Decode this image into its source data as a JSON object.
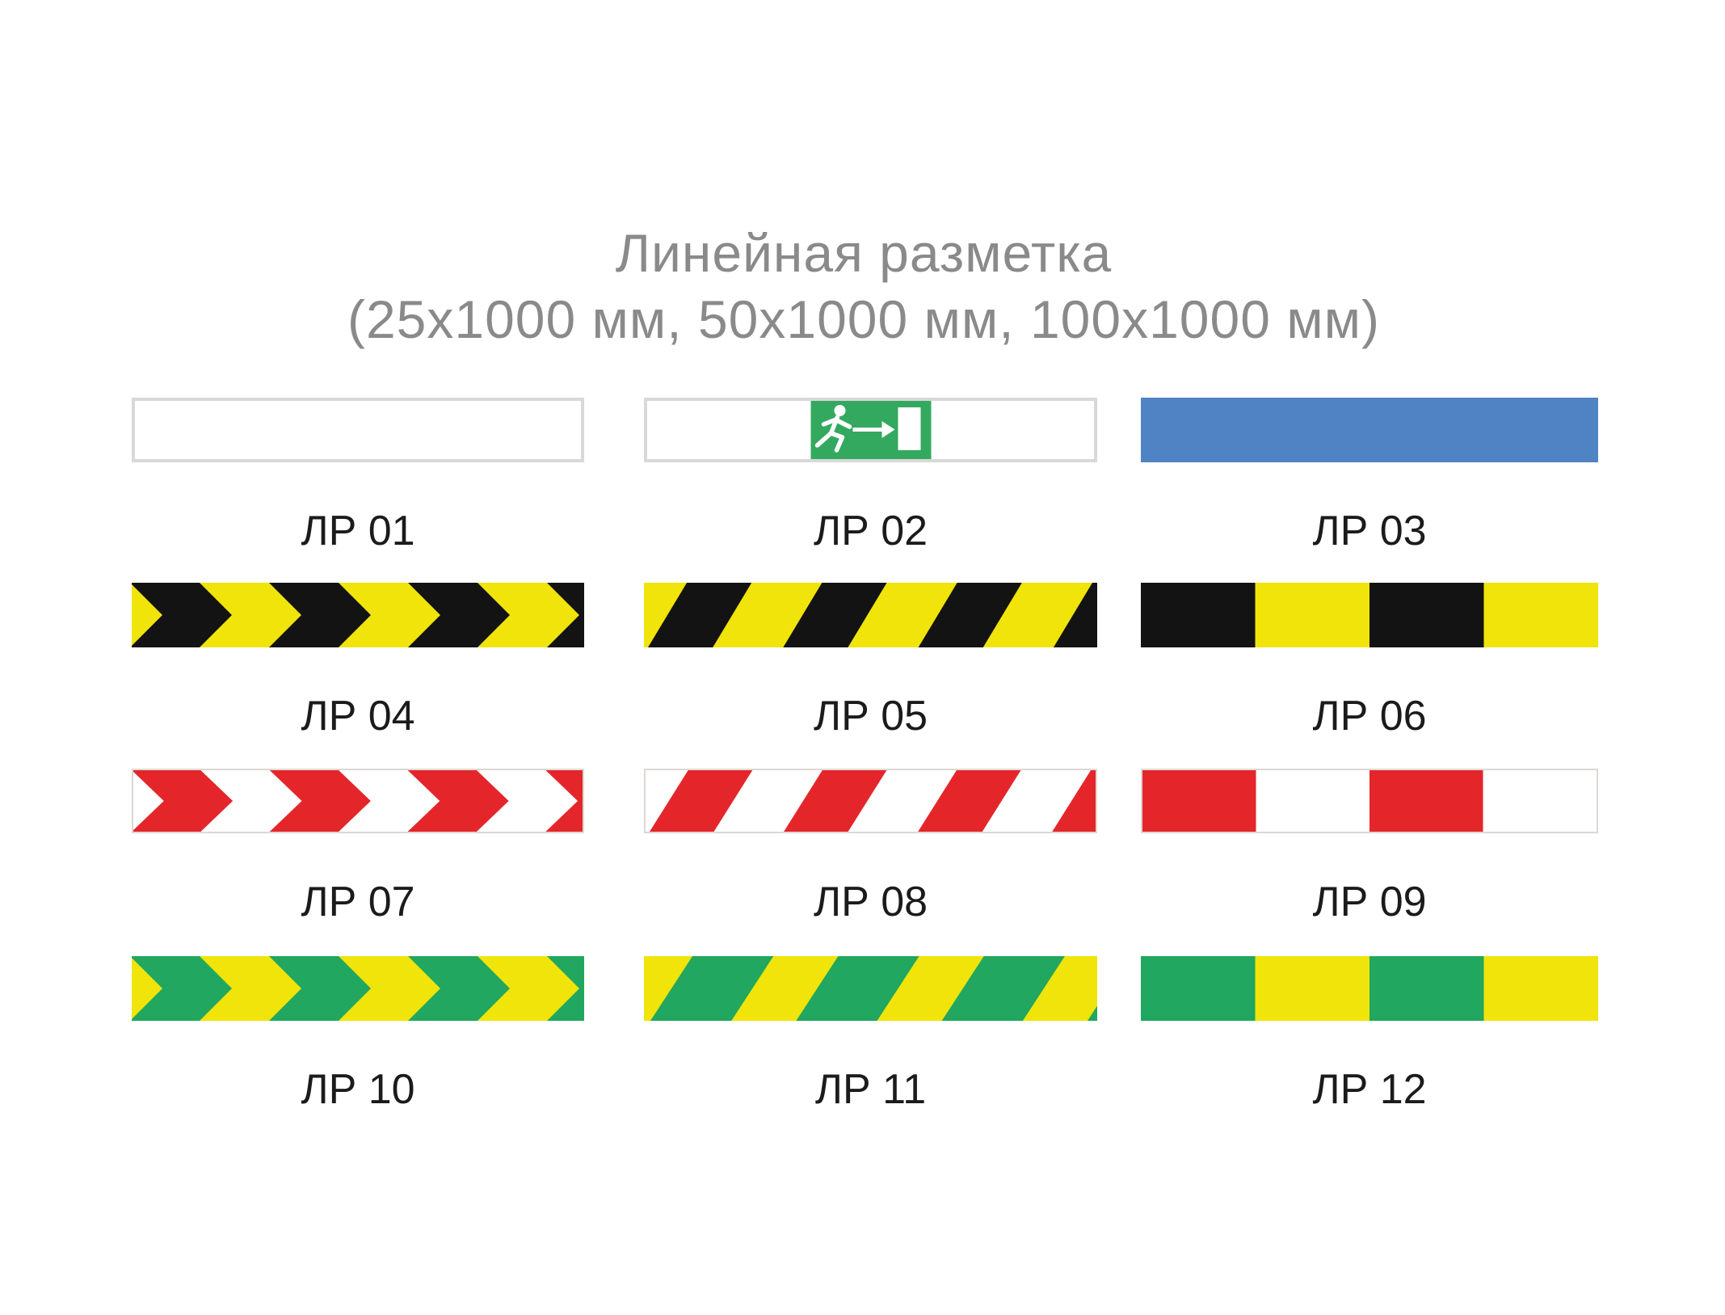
{
  "title": {
    "line1": "Линейная разметка",
    "line2": "(25х1000 мм, 50х1000 мм, 100х1000 мм)"
  },
  "colors": {
    "title_text": "#8A8A8A",
    "label_text": "#1B1B1B",
    "frame_gray_thick": "#D8D8D8",
    "frame_gray_thin": "#DBD8D2",
    "safety_yellow": "#F0E40A",
    "safety_black": "#131313",
    "safety_red": "#E4262B",
    "safety_green": "#21A75F",
    "safety_blue": "#5083C3",
    "exit_sign_green": "#33A95F",
    "white": "#FFFFFF"
  },
  "items": [
    {
      "label": "ЛР 01",
      "pattern": "plain",
      "bg": "#FFFFFF",
      "border": "thick"
    },
    {
      "label": "ЛР 02",
      "pattern": "exit",
      "bg": "#FFFFFF",
      "border": "thick",
      "sign": "#33A95F",
      "pictogram": "running-man-arrow-door"
    },
    {
      "label": "ЛР 03",
      "pattern": "plain",
      "bg": "#5083C3",
      "border": "none"
    },
    {
      "label": "ЛР 04",
      "pattern": "chevrons",
      "bg": "#F0E40A",
      "fg": "#131313",
      "border": "none"
    },
    {
      "label": "ЛР 05",
      "pattern": "stripes",
      "bg": "#F0E40A",
      "fg": "#131313",
      "border": "none"
    },
    {
      "label": "ЛР 06",
      "pattern": "blocks",
      "bg": "#F0E40A",
      "fg": "#131313",
      "border": "none"
    },
    {
      "label": "ЛР 07",
      "pattern": "chevrons",
      "bg": "#FFFFFF",
      "fg": "#E4262B",
      "border": "thin"
    },
    {
      "label": "ЛР 08",
      "pattern": "stripes",
      "bg": "#FFFFFF",
      "fg": "#E4262B",
      "border": "thin"
    },
    {
      "label": "ЛР 09",
      "pattern": "blocks",
      "bg": "#FFFFFF",
      "fg": "#E4262B",
      "border": "thin"
    },
    {
      "label": "ЛР 10",
      "pattern": "chevrons",
      "bg": "#F0E40A",
      "fg": "#21A75F",
      "border": "none"
    },
    {
      "label": "ЛР 11",
      "pattern": "stripes",
      "bg": "#F0E40A",
      "fg": "#21A75F",
      "border": "none",
      "wide": true
    },
    {
      "label": "ЛР 12",
      "pattern": "blocks",
      "bg": "#F0E40A",
      "fg": "#21A75F",
      "border": "none"
    }
  ]
}
